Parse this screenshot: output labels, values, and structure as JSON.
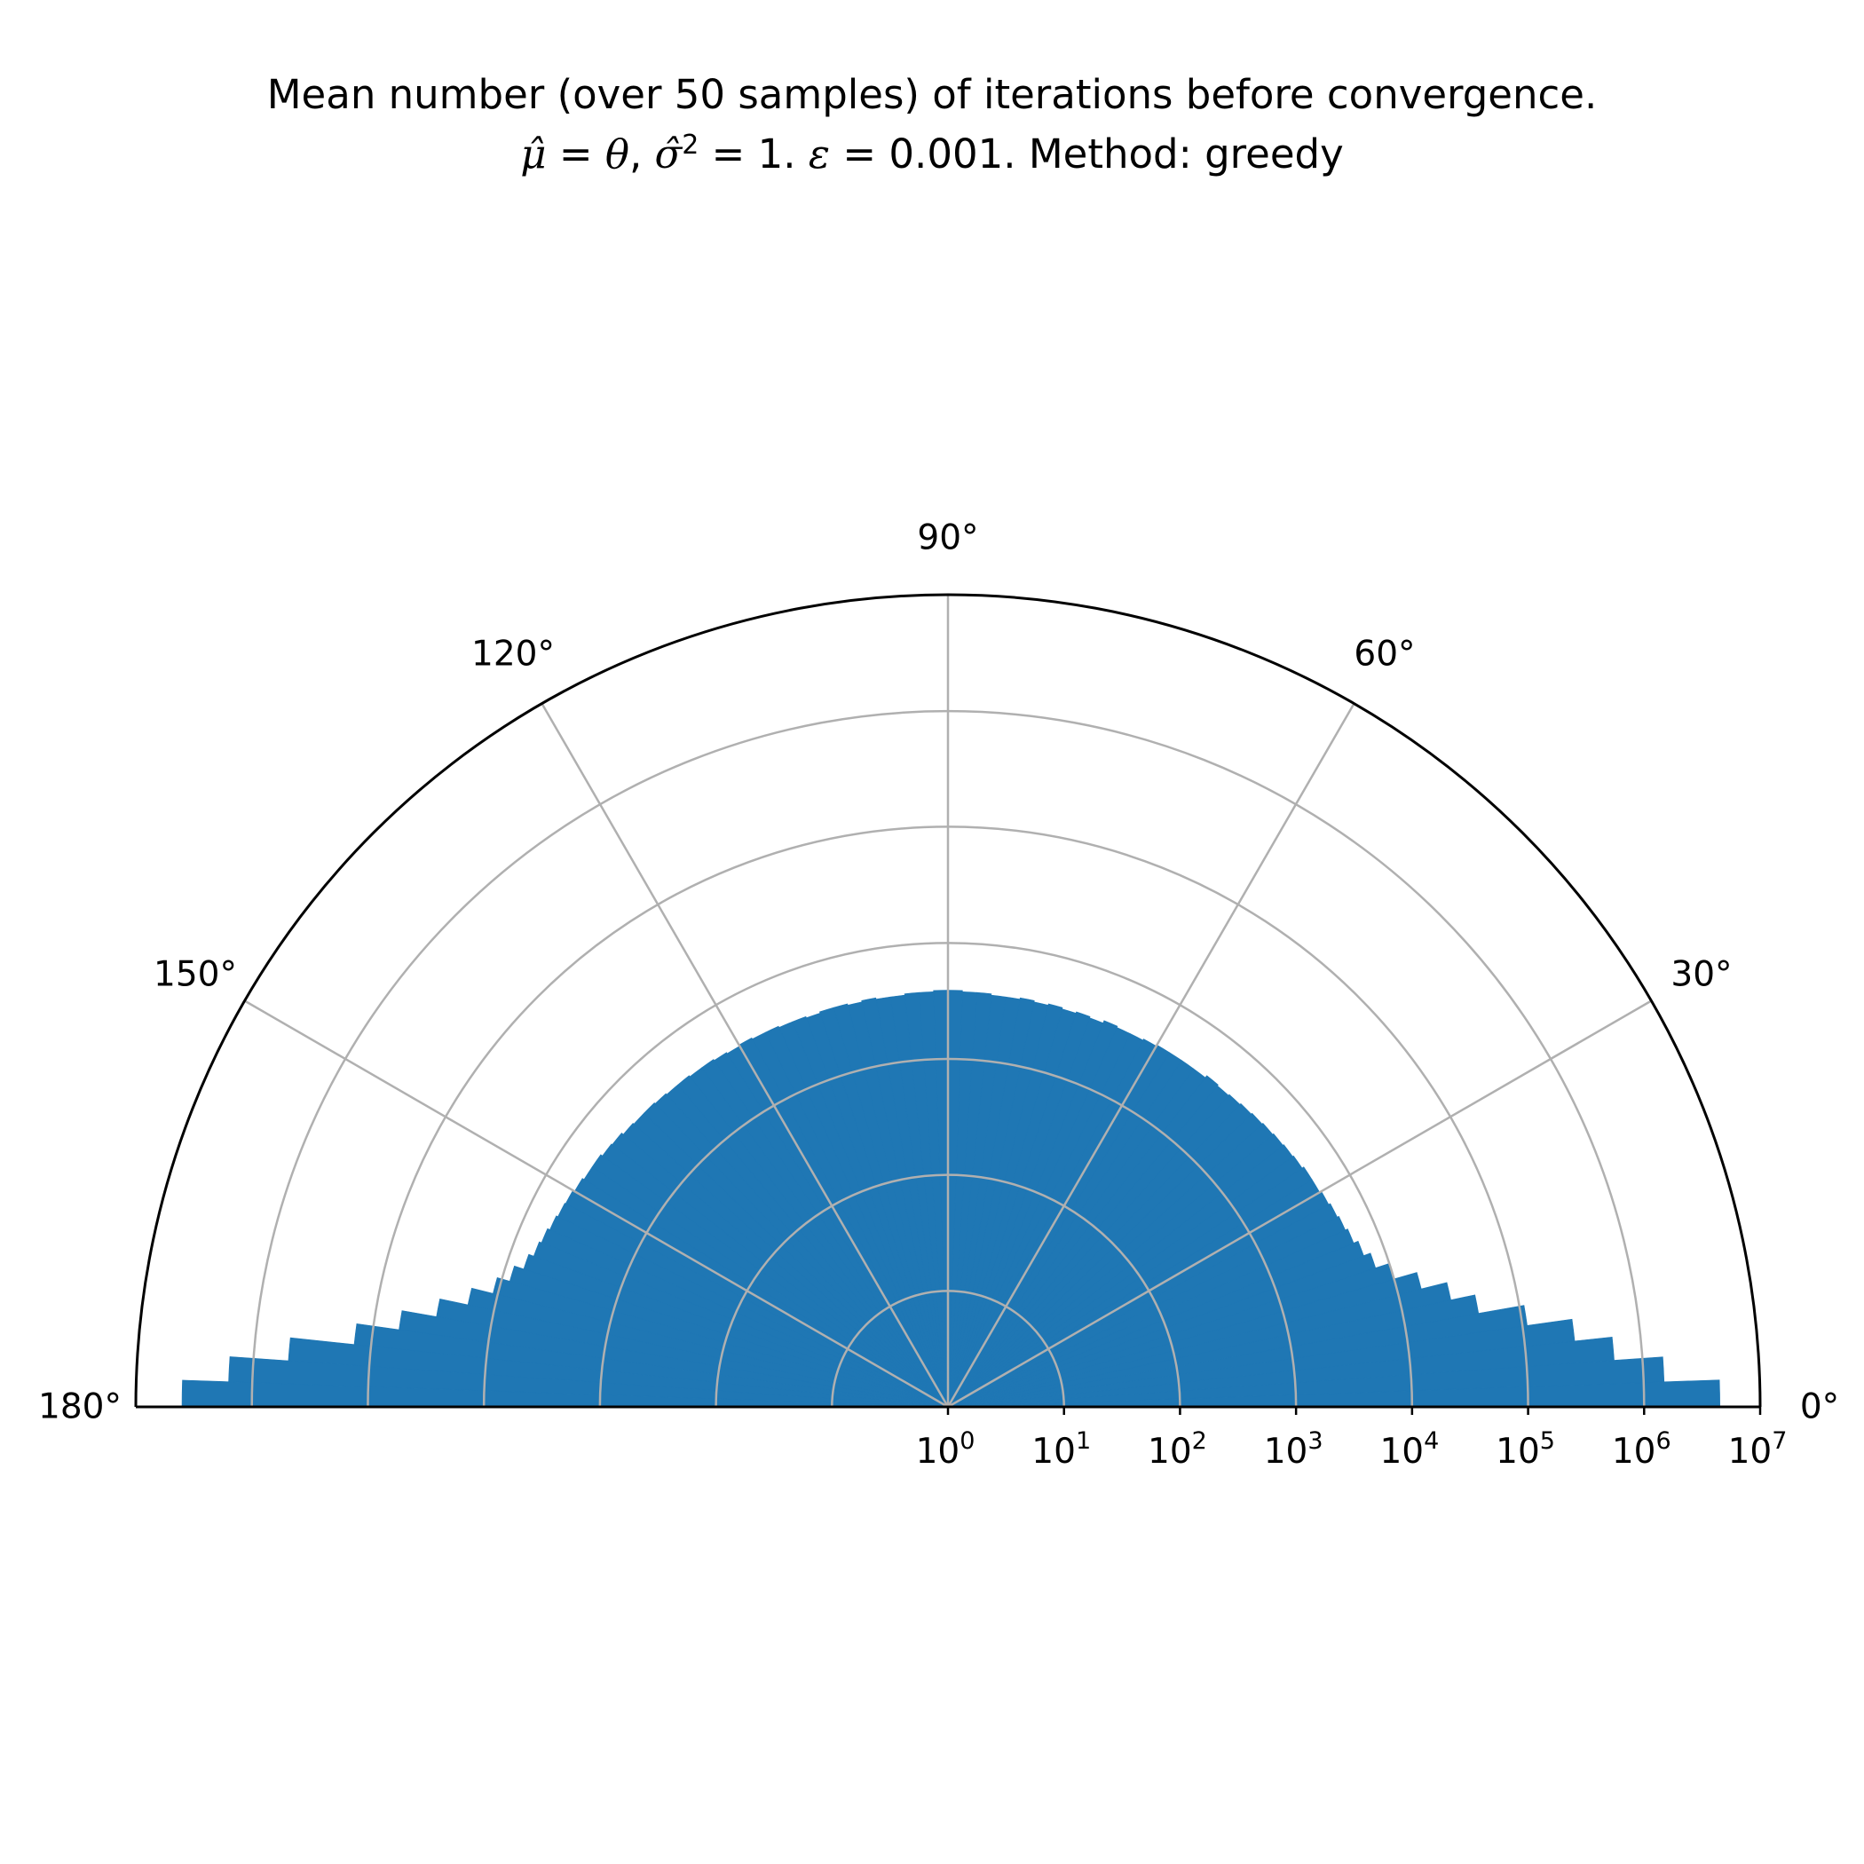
{
  "title_lines": [
    "Mean number (over 50 samples) of iterations before convergence.",
    "μ̂ = θ, σ̂² = 1. ε = 0.001. Method: greedy"
  ],
  "chart_data": {
    "type": "bar",
    "projection": "polar",
    "title": "Mean number (over 50 samples) of iterations before convergence.\nμ̂ = θ, σ̂² = 1. ε = 0.001. Method: greedy",
    "theta_range_deg": [
      0,
      180
    ],
    "r_scale": "log",
    "r_range": [
      1,
      10000000
    ],
    "theta_ticks": [
      "0°",
      "30°",
      "60°",
      "90°",
      "120°",
      "150°",
      "180°"
    ],
    "r_ticks": [
      {
        "base": "10",
        "exp": "0"
      },
      {
        "base": "10",
        "exp": "1"
      },
      {
        "base": "10",
        "exp": "2"
      },
      {
        "base": "10",
        "exp": "3"
      },
      {
        "base": "10",
        "exp": "4"
      },
      {
        "base": "10",
        "exp": "5"
      },
      {
        "base": "10",
        "exp": "6"
      },
      {
        "base": "10",
        "exp": "7"
      }
    ],
    "grid": true,
    "bar_color": "#1f77b4",
    "grid_color": "#b0b0b0",
    "axis_color": "#000000",
    "bin_width_deg": 2,
    "theta_deg": [
      1,
      3,
      5,
      7,
      9,
      11,
      13,
      15,
      17,
      19,
      21,
      23,
      25,
      27,
      29,
      31,
      33,
      35,
      37,
      39,
      41,
      43,
      45,
      47,
      49,
      51,
      53,
      55,
      57,
      59,
      61,
      63,
      65,
      67,
      69,
      71,
      73,
      75,
      77,
      79,
      81,
      83,
      85,
      87,
      89,
      91,
      93,
      95,
      97,
      99,
      101,
      103,
      105,
      107,
      109,
      111,
      113,
      115,
      117,
      119,
      121,
      123,
      125,
      127,
      129,
      131,
      133,
      135,
      137,
      139,
      141,
      143,
      145,
      147,
      149,
      151,
      153,
      155,
      157,
      159,
      161,
      163,
      165,
      167,
      169,
      171,
      173,
      175,
      177,
      179
    ],
    "values": [
      4500000,
      1500000,
      570000,
      270000,
      110000,
      44000,
      27000,
      16000,
      10000,
      7500,
      6500,
      5900,
      5600,
      5400,
      5200,
      5000,
      5000,
      4800,
      4700,
      4600,
      4500,
      4400,
      4300,
      4200,
      4100,
      4200,
      4000,
      4000,
      4000,
      4000,
      3900,
      3800,
      3800,
      3900,
      3700,
      3800,
      3700,
      3800,
      3700,
      3800,
      3700,
      3700,
      3800,
      3800,
      3900,
      3900,
      3800,
      3800,
      3700,
      3700,
      3800,
      3700,
      3800,
      3800,
      3700,
      3800,
      3800,
      3900,
      3900,
      4000,
      3900,
      4000,
      4100,
      4100,
      4200,
      4200,
      4300,
      4400,
      4400,
      4500,
      4700,
      4800,
      5000,
      5000,
      5200,
      5400,
      5500,
      5700,
      6000,
      6300,
      7000,
      8500,
      11000,
      17000,
      30000,
      60000,
      140000,
      500000,
      1600000,
      4000000
    ]
  }
}
